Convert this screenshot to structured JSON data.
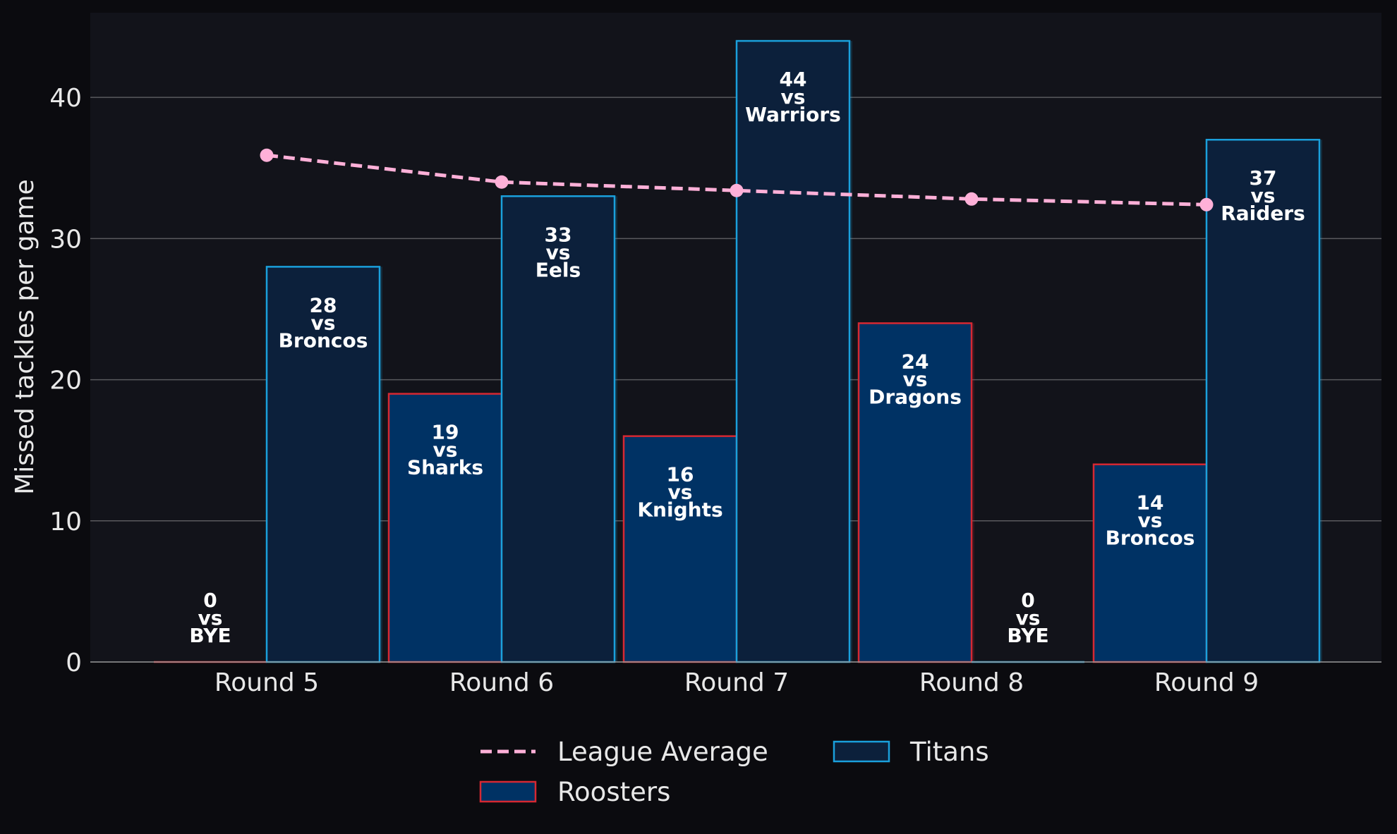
{
  "chart_data": {
    "type": "bar",
    "categories": [
      "Round 5",
      "Round 6",
      "Round 7",
      "Round 8",
      "Round 9"
    ],
    "ylabel": "Missed tackles per game",
    "xlabel": "",
    "ylim": [
      0,
      46
    ],
    "yticks": [
      0,
      10,
      20,
      30,
      40
    ],
    "grid": true,
    "legend_position": "bottom-center",
    "series": [
      {
        "name": "Roosters",
        "kind": "bar",
        "values": [
          0,
          19,
          16,
          24,
          14
        ],
        "opponents": [
          "BYE",
          "Sharks",
          "Knights",
          "Dragons",
          "Broncos"
        ],
        "fill": "#003264",
        "edge": "#d62832"
      },
      {
        "name": "Titans",
        "kind": "bar",
        "values": [
          28,
          33,
          44,
          0,
          37
        ],
        "opponents": [
          "Broncos",
          "Eels",
          "Warriors",
          "BYE",
          "Raiders"
        ],
        "fill": "#0c203b",
        "edge": "#1aa0dc"
      },
      {
        "name": "League Average",
        "kind": "line",
        "style": "dashed",
        "values": [
          35.9,
          34.0,
          33.4,
          32.8,
          32.4
        ],
        "color": "#ffb0d8"
      }
    ],
    "vs_word": "vs"
  },
  "colors": {
    "figure_bg": "#0b0b0f",
    "axes_bg": "#12131a",
    "grid": "#5a5a5e",
    "text": "#e8e8e8"
  }
}
